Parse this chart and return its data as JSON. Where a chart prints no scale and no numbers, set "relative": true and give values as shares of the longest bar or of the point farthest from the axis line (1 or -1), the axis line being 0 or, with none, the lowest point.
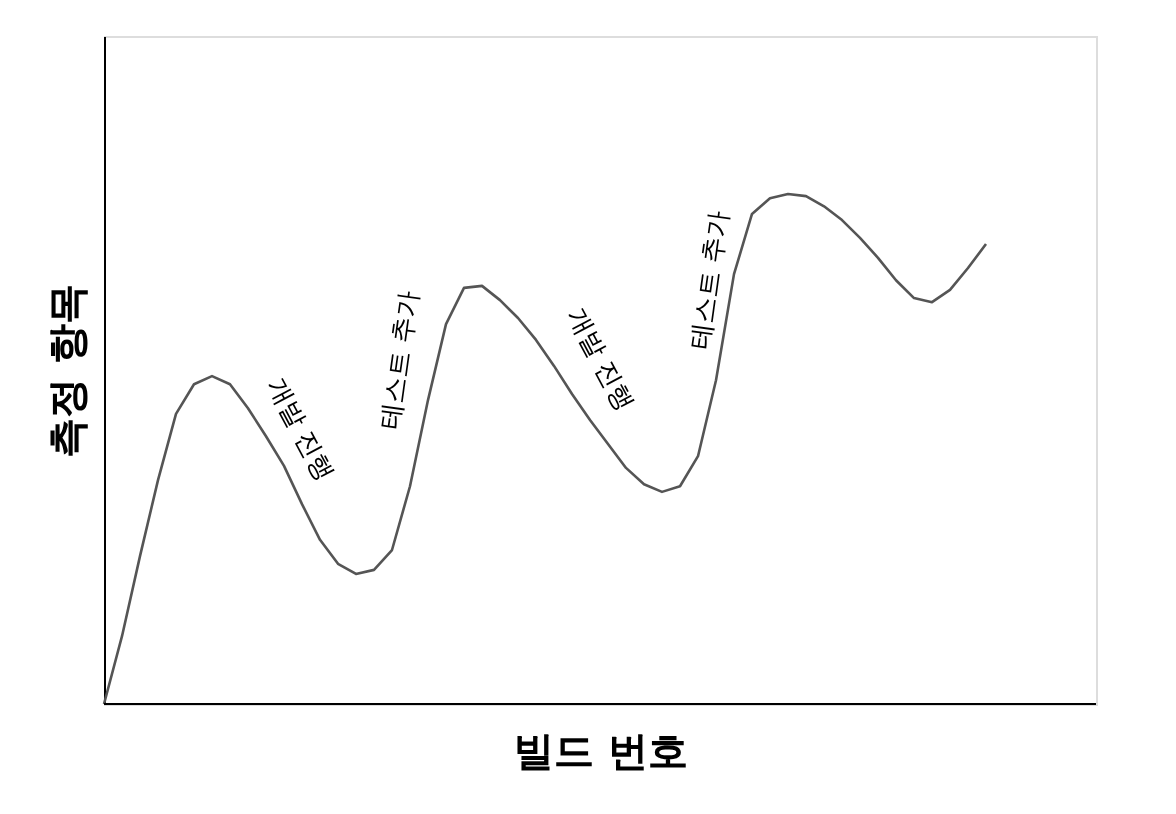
{
  "chart_data": {
    "type": "line",
    "relative": true,
    "xlabel": "빌드 번호",
    "ylabel": "측정 항목",
    "marker": "none",
    "line_style": "solid",
    "categories": [
      null,
      null,
      null,
      null,
      null,
      null,
      null,
      null,
      null,
      null,
      null,
      null,
      null,
      null,
      null,
      null,
      null,
      null,
      null,
      null,
      null,
      null,
      null,
      null,
      null,
      null,
      null,
      null,
      null,
      null,
      null,
      null,
      null,
      null,
      null,
      null,
      null,
      null,
      null,
      null,
      null,
      null,
      null,
      null,
      null,
      null,
      null,
      null,
      null,
      null
    ],
    "series": [
      {
        "color": "#555555",
        "values": [
          0,
          0.133,
          0.29,
          0.439,
          0.569,
          0.627,
          0.643,
          0.627,
          0.58,
          0.525,
          0.467,
          0.392,
          0.322,
          0.275,
          0.255,
          0.263,
          0.302,
          0.427,
          0.596,
          0.745,
          0.816,
          0.82,
          0.792,
          0.757,
          0.714,
          0.663,
          0.608,
          0.557,
          0.51,
          0.463,
          0.431,
          0.416,
          0.427,
          0.486,
          0.635,
          0.843,
          0.961,
          0.992,
          1.0,
          0.996,
          0.976,
          0.949,
          0.914,
          0.875,
          0.831,
          0.796,
          0.788,
          0.812,
          0.855,
          0.902
        ]
      }
    ],
    "annotations": [
      "개발 진행",
      "테스트 추가",
      "개발 진행",
      "테스트 추가"
    ]
  }
}
